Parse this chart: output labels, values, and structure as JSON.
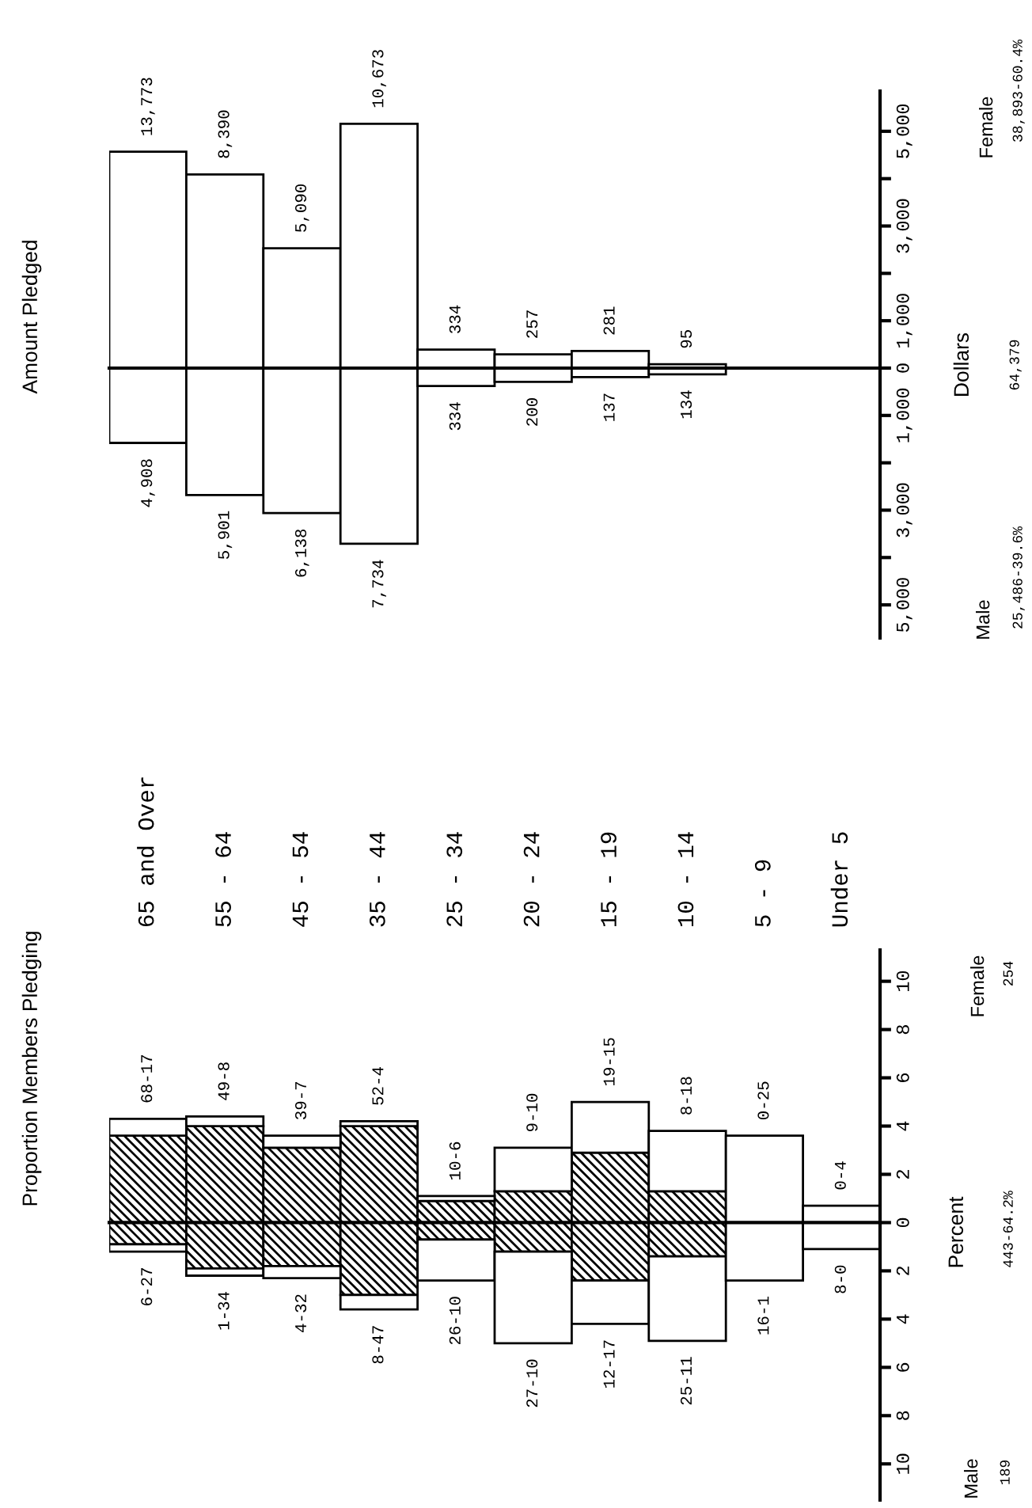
{
  "chart_data": [
    {
      "type": "bar",
      "title": "Proportion Members Pledging",
      "ylabel": "Percent",
      "stacked": true,
      "categories": [
        "65 and Over",
        "55 - 64",
        "45 - 54",
        "35 - 44",
        "25 - 34",
        "20 - 24",
        "15 - 19",
        "10 - 14",
        "5 - 9",
        "Under 5"
      ],
      "series": [
        {
          "color": "#000000",
          "values": [
            3.6,
            4.0,
            3.1,
            4.0,
            0.9,
            1.3,
            2.9,
            1.3,
            0,
            0
          ]
        },
        {
          "color": "#ffffff",
          "values": [
            0.7,
            0.4,
            0.5,
            0.2,
            0.2,
            1.8,
            2.1,
            2.5,
            3.6,
            0.7
          ]
        },
        {
          "color": "#000000",
          "values": [
            -0.9,
            -1.9,
            -1.8,
            -3.0,
            -0.7,
            -1.2,
            -2.4,
            -1.4,
            0,
            0
          ]
        },
        {
          "color": "#ffffff",
          "values": [
            -0.3,
            -0.3,
            -0.5,
            -0.6,
            -1.7,
            -3.8,
            -1.8,
            -3.5,
            -2.4,
            -1.1
          ]
        }
      ],
      "ylim": [
        -11.5,
        11.3
      ],
      "yticks": [
        {
          "value": -10,
          "label": "10"
        },
        {
          "value": -8,
          "label": "8"
        },
        {
          "value": -6,
          "label": "6"
        },
        {
          "value": -4,
          "label": "4"
        },
        {
          "value": -2,
          "label": "2"
        },
        0,
        2,
        4,
        6,
        8,
        10
      ],
      "annotations": [
        {
          "text": "68-17",
          "x": "65 and Over",
          "y": 4.3
        },
        {
          "text": "49-8",
          "x": "55 - 64",
          "y": 4.4
        },
        {
          "text": "39-7",
          "x": "45 - 54",
          "y": 3.6
        },
        {
          "text": "52-4",
          "x": "35 - 44",
          "y": 4.2
        },
        {
          "text": "10-6",
          "x": "25 - 34",
          "y": 1.1
        },
        {
          "text": "9-10",
          "x": "20 - 24",
          "y": 3.1
        },
        {
          "text": "19-15",
          "x": "15 - 19",
          "y": 5.0
        },
        {
          "text": "8-18",
          "x": "10 - 14",
          "y": 3.8
        },
        {
          "text": "0-25",
          "x": "5 - 9",
          "y": 3.6
        },
        {
          "text": "0-4",
          "x": "Under 5",
          "y": 0.7
        },
        {
          "text": "6-27",
          "x": "65 and Over",
          "y": -1.2
        },
        {
          "text": "1-34",
          "x": "55 - 64",
          "y": -2.2
        },
        {
          "text": "4-32",
          "x": "45 - 54",
          "y": -2.3
        },
        {
          "text": "8-47",
          "x": "35 - 44",
          "y": -3.6
        },
        {
          "text": "26-10",
          "x": "25 - 34",
          "y": -2.4
        },
        {
          "text": "27-10",
          "x": "20 - 24",
          "y": -5.0
        },
        {
          "text": "12-17",
          "x": "15 - 19",
          "y": -4.2
        },
        {
          "text": "25-11",
          "x": "10 - 14",
          "y": -4.9
        },
        {
          "text": "16-1",
          "x": "5 - 9",
          "y": -2.4
        },
        {
          "text": "8-0",
          "x": "Under 5",
          "y": -1.1
        },
        "Female",
        "254",
        "Male",
        "189",
        "443-64.2%"
      ]
    },
    {
      "type": "bar",
      "title": "Amount Pledged",
      "ylabel": "Dollars",
      "stacked": true,
      "tick_labels": "y",
      "categories": [
        "65 and Over",
        "55 - 64",
        "45 - 54",
        "35 - 44",
        "25 - 34",
        "20 - 24",
        "15 - 19",
        "10 - 14",
        "5 - 9",
        "Under 5"
      ],
      "series": [
        {
          "color": "#ffffff",
          "values": [
            4570,
            4090,
            2530,
            5160,
            390,
            290,
            360,
            80,
            0,
            0
          ]
        },
        {
          "color": "#ffffff",
          "values": [
            -1580,
            -2680,
            -3060,
            -3710,
            -380,
            -290,
            -190,
            -130,
            0,
            0
          ]
        }
      ],
      "ylim": [
        -5700,
        5850
      ],
      "yticks": [
        {
          "value": -5000,
          "label": "5,000"
        },
        {
          "value": -4000,
          "label": null
        },
        {
          "value": -3000,
          "label": "3,000"
        },
        {
          "value": -2000,
          "label": null
        },
        {
          "value": -1000,
          "label": "1,000"
        },
        0,
        {
          "value": 1000,
          "label": "1,000"
        },
        {
          "value": 2000,
          "label": null
        },
        {
          "value": 3000,
          "label": "3,000"
        },
        {
          "value": 4000,
          "label": null
        },
        {
          "value": 5000,
          "label": "5,000"
        }
      ],
      "annotations": [
        {
          "text": "13,773",
          "x": "65 and Over",
          "y": 4570
        },
        {
          "text": "8,390",
          "x": "55 - 64",
          "y": 4090
        },
        {
          "text": "5,090",
          "x": "45 - 54",
          "y": 2530
        },
        {
          "text": "10,673",
          "x": "35 - 44",
          "y": 5160
        },
        {
          "text": "334",
          "x": "25 - 34",
          "y": 390
        },
        {
          "text": "257",
          "x": "20 - 24",
          "y": 290
        },
        {
          "text": "281",
          "x": "15 - 19",
          "y": 360
        },
        {
          "text": "95",
          "x": "10 - 14",
          "y": 80
        },
        {
          "text": "4,908",
          "x": "65 and Over",
          "y": -1580
        },
        {
          "text": "5,901",
          "x": "55 - 64",
          "y": -2680
        },
        {
          "text": "6,138",
          "x": "45 - 54",
          "y": -3060
        },
        {
          "text": "7,734",
          "x": "35 - 44",
          "y": -3710
        },
        {
          "text": "334",
          "x": "25 - 34",
          "y": -380
        },
        {
          "text": "200",
          "x": "20 - 24",
          "y": -290
        },
        {
          "text": "137",
          "x": "15 - 19",
          "y": -190
        },
        {
          "text": "134",
          "x": "10 - 14",
          "y": -130
        },
        "Female",
        "38,893-60.4%",
        "Male",
        "25,486-39.6%",
        "64,379"
      ]
    }
  ]
}
